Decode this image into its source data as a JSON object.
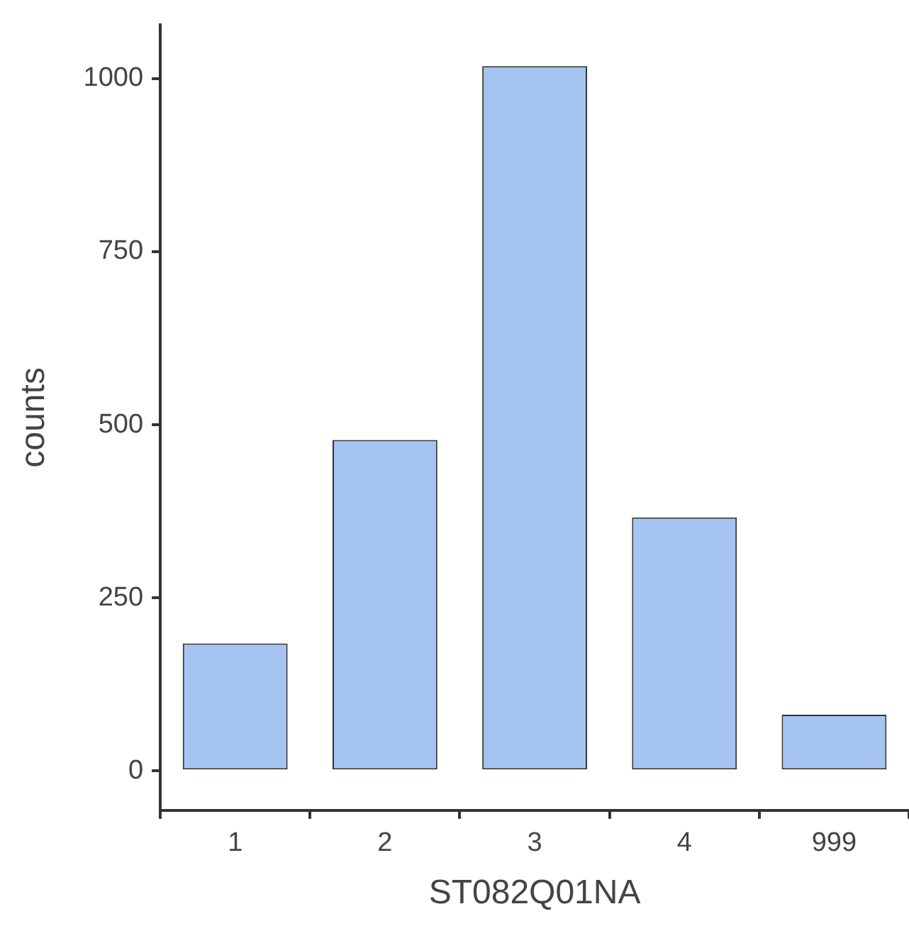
{
  "chart_data": {
    "type": "bar",
    "xlabel": "ST082Q01NA",
    "ylabel": "counts",
    "categories": [
      "1",
      "2",
      "3",
      "4",
      "999"
    ],
    "values": [
      184,
      478,
      1018,
      366,
      81
    ],
    "color": "#a6c4f1",
    "ylim": [
      -57,
      1078
    ],
    "yticks": [
      0,
      250,
      500,
      750,
      1000
    ],
    "grid": false,
    "legend": false
  }
}
